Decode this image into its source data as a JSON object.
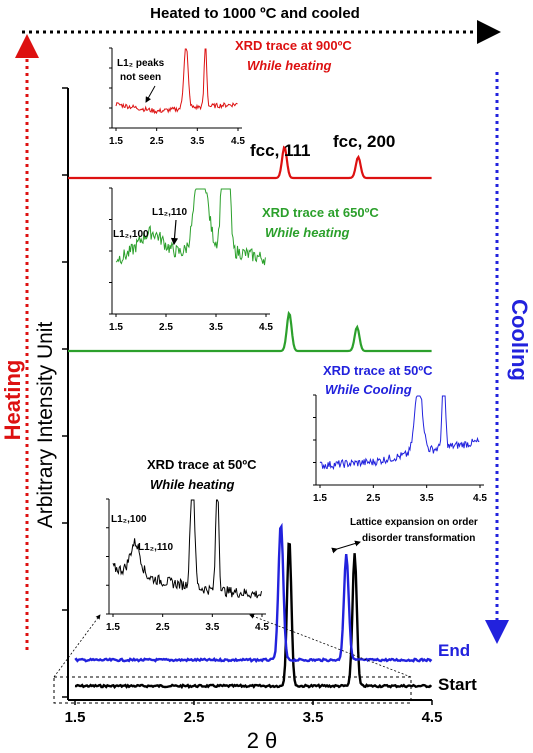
{
  "chart_data": {
    "type": "line",
    "top_arrow_label": "Heated to 1000 ºC and cooled",
    "left_arrow_label": "Heating",
    "right_arrow_label": "Cooling",
    "ylabel": "Arbitrary Intensity Unit",
    "xlabel": "2 θ",
    "x_ticks": [
      "1.5",
      "2.5",
      "3.5",
      "4.5"
    ],
    "xlim": [
      1.5,
      4.5
    ],
    "peak_labels": [
      "fcc, 111",
      "fcc, 200"
    ],
    "trace_labels": [
      "End",
      "Start"
    ],
    "annotation_lattice": [
      "Lattice expansion on order",
      "disorder transformation"
    ],
    "series": [
      {
        "name": "Start",
        "color": "#000000",
        "baseline_offset": 0,
        "peaks": [
          {
            "x": 3.3,
            "h": 148
          },
          {
            "x": 3.85,
            "h": 133
          }
        ]
      },
      {
        "name": "End",
        "color": "#2222dd",
        "baseline_offset": 26,
        "peaks": [
          {
            "x": 3.23,
            "h": 137
          },
          {
            "x": 3.78,
            "h": 105
          }
        ]
      },
      {
        "color": "#2ca02c",
        "baseline_offset": 335,
        "peaks": [
          {
            "x": 3.3,
            "h": 38
          },
          {
            "x": 3.87,
            "h": 24
          }
        ]
      },
      {
        "color": "#dd1111",
        "baseline_offset": 508,
        "peaks": [
          {
            "x": 3.26,
            "h": 31
          },
          {
            "x": 3.88,
            "h": 21
          }
        ]
      }
    ],
    "insets": [
      {
        "id": "red",
        "title": "XRD trace at  900ºC",
        "subtitle": "While heating",
        "color": "#dd1111",
        "ticks": [
          "1.5",
          "2.5",
          "3.5",
          "4.5"
        ],
        "labels": [
          "L1₂ peaks",
          "not seen"
        ]
      },
      {
        "id": "green",
        "title": "XRD trace at  650ºC",
        "subtitle": "While heating",
        "color": "#2ca02c",
        "ticks": [
          "1.5",
          "2.5",
          "3.5",
          "4.5"
        ],
        "labels": [
          "L1₂,100",
          "L1₂,110"
        ]
      },
      {
        "id": "blue",
        "title": "XRD trace at  50ºC",
        "subtitle": "While Cooling",
        "color": "#2222dd",
        "ticks": [
          "1.5",
          "2.5",
          "3.5",
          "4.5"
        ],
        "labels": []
      },
      {
        "id": "black",
        "title": "XRD trace at  50ºC",
        "subtitle": "While heating",
        "color": "#000000",
        "ticks": [
          "1.5",
          "2.5",
          "3.5",
          "4.5"
        ],
        "labels": [
          "L1₂,100",
          "L1₂,110"
        ]
      }
    ]
  }
}
